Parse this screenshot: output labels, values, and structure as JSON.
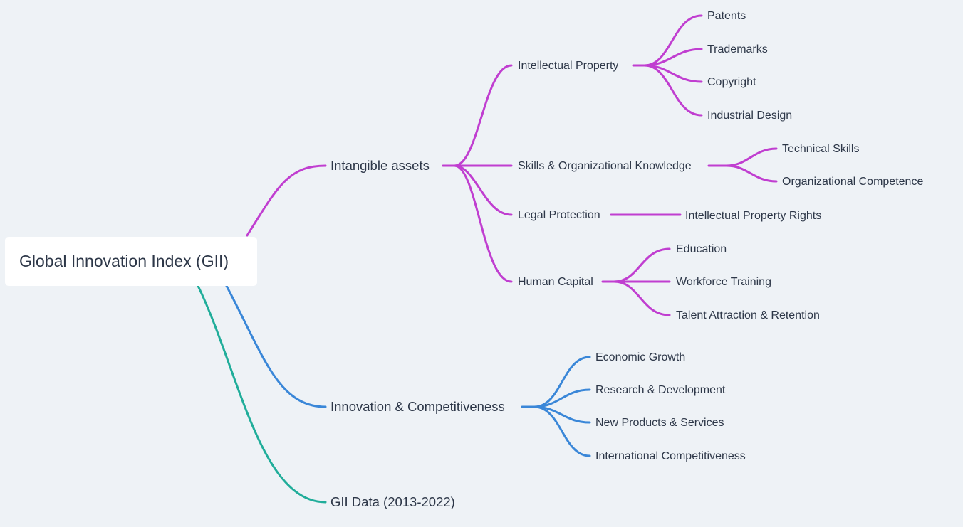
{
  "root": {
    "label": "Global Innovation Index (GII)"
  },
  "branches": [
    {
      "label": "Intangible assets",
      "children": [
        {
          "label": "Intellectual Property",
          "children": [
            {
              "label": "Patents"
            },
            {
              "label": "Trademarks"
            },
            {
              "label": "Copyright"
            },
            {
              "label": "Industrial Design"
            }
          ]
        },
        {
          "label": "Skills & Organizational Knowledge",
          "children": [
            {
              "label": "Technical Skills"
            },
            {
              "label": "Organizational Competence"
            }
          ]
        },
        {
          "label": "Legal Protection",
          "children": [
            {
              "label": "Intellectual Property Rights"
            }
          ]
        },
        {
          "label": "Human Capital",
          "children": [
            {
              "label": "Education"
            },
            {
              "label": "Workforce Training"
            },
            {
              "label": "Talent Attraction & Retention"
            }
          ]
        }
      ]
    },
    {
      "label": "Innovation & Competitiveness",
      "children": [
        {
          "label": "Economic Growth"
        },
        {
          "label": "Research & Development"
        },
        {
          "label": "New Products & Services"
        },
        {
          "label": "International Competitiveness"
        }
      ]
    },
    {
      "label": "GII Data (2013-2022)"
    }
  ]
}
